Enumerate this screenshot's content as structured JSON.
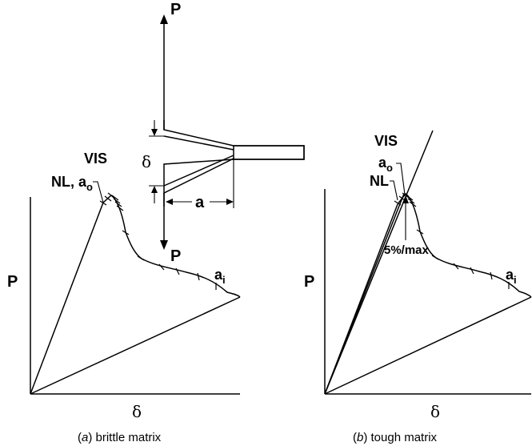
{
  "specimen": {
    "load_top": "P",
    "load_bottom": "P",
    "opening": "δ",
    "crack_length": "a"
  },
  "panel_a": {
    "label_vis": "VIS",
    "label_nl_a0": "NL, a",
    "label_nl_a0_sub": "o",
    "label_ai": "a",
    "label_ai_sub": "i",
    "y_axis": "P",
    "x_axis": "δ",
    "caption_paren_open": "(",
    "caption_letter": "a",
    "caption_rest": ")  brittle matrix"
  },
  "panel_b": {
    "label_vis": "VIS",
    "label_a0": "a",
    "label_a0_sub": "o",
    "label_nl": "NL",
    "label_5max": "5%/max",
    "label_ai": "a",
    "label_ai_sub": "i",
    "y_axis": "P",
    "x_axis": "δ",
    "caption_paren_open": "(",
    "caption_letter": "b",
    "caption_rest": ")  tough matrix"
  }
}
